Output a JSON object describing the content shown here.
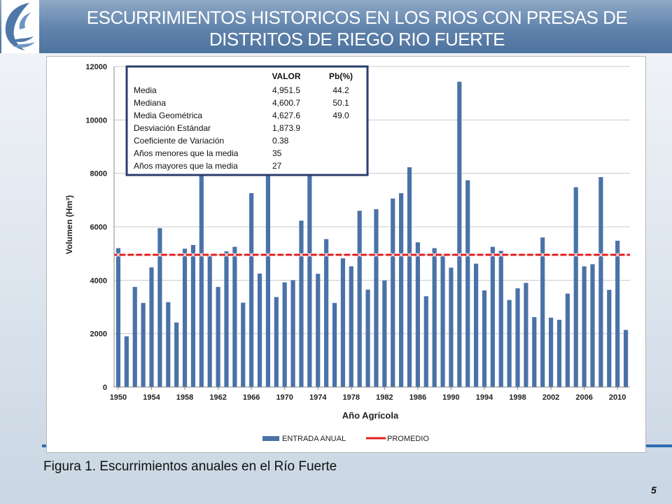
{
  "slide": {
    "title_line1": "ESCURRIMIENTOS HISTORICOS EN LOS RIOS CON PRESAS DE",
    "title_line2": "DISTRITOS DE RIEGO RIO FUERTE",
    "caption": "Figura 1. Escurrimientos anuales en el Río Fuerte",
    "page_number": "5",
    "logo_icon": "water-bird-logo-icon"
  },
  "stats_table": {
    "headers": [
      "VALOR",
      "Pb(%)"
    ],
    "rows": [
      {
        "label": "Media",
        "valor": "4,951.5",
        "pb": "44.2"
      },
      {
        "label": "Mediana",
        "valor": "4,600.7",
        "pb": "50.1"
      },
      {
        "label": "Media Geométrica",
        "valor": "4,627.6",
        "pb": "49.0"
      },
      {
        "label": "Desviación Estándar",
        "valor": "1,873.9",
        "pb": ""
      },
      {
        "label": "Coeficiente de Variación",
        "valor": "0.38",
        "pb": ""
      },
      {
        "label": "Años menores que la media",
        "valor": "35",
        "pb": ""
      },
      {
        "label": "Años mayores que la media",
        "valor": "27",
        "pb": ""
      }
    ]
  },
  "chart_data": {
    "type": "bar",
    "xlabel": "Año Agrícola",
    "ylabel": "Volumen (Hm³)",
    "ylim": [
      0,
      12000
    ],
    "yticks": [
      0,
      2000,
      4000,
      6000,
      8000,
      10000,
      12000
    ],
    "xticks": [
      1950,
      1954,
      1958,
      1962,
      1966,
      1970,
      1974,
      1978,
      1982,
      1986,
      1990,
      1994,
      1998,
      2002,
      2006,
      2010
    ],
    "grid": true,
    "legend_position": "bottom",
    "categories": [
      1950,
      1951,
      1952,
      1953,
      1954,
      1955,
      1956,
      1957,
      1958,
      1959,
      1960,
      1961,
      1962,
      1963,
      1964,
      1965,
      1966,
      1967,
      1968,
      1969,
      1970,
      1971,
      1972,
      1973,
      1974,
      1975,
      1976,
      1977,
      1978,
      1979,
      1980,
      1981,
      1982,
      1983,
      1984,
      1985,
      1986,
      1987,
      1988,
      1989,
      1990,
      1991,
      1992,
      1993,
      1994,
      1995,
      1996,
      1997,
      1998,
      1999,
      2000,
      2001,
      2002,
      2003,
      2004,
      2005,
      2006,
      2007,
      2008,
      2009,
      2010,
      2011
    ],
    "series": [
      {
        "name": "ENTRADA ANUAL",
        "type": "bar",
        "color": "#4a72a8",
        "values": [
          5200,
          1900,
          3750,
          3150,
          4480,
          5950,
          3180,
          2420,
          5180,
          5320,
          8300,
          4950,
          3750,
          5080,
          5250,
          3160,
          7260,
          4250,
          8250,
          3370,
          3920,
          4000,
          6230,
          8150,
          4240,
          5540,
          3150,
          4820,
          4520,
          6600,
          3650,
          6660,
          3990,
          7060,
          7260,
          8230,
          5420,
          3400,
          5200,
          4950,
          4470,
          11430,
          7740,
          4620,
          3620,
          5250,
          5100,
          3260,
          3700,
          3900,
          2620,
          5600,
          2600,
          2520,
          3500,
          7480,
          4520,
          4600,
          7860,
          3640,
          5480,
          2140
        ]
      },
      {
        "name": "PROMEDIO",
        "type": "line",
        "color": "#e02020",
        "value": 4951.5
      }
    ]
  }
}
